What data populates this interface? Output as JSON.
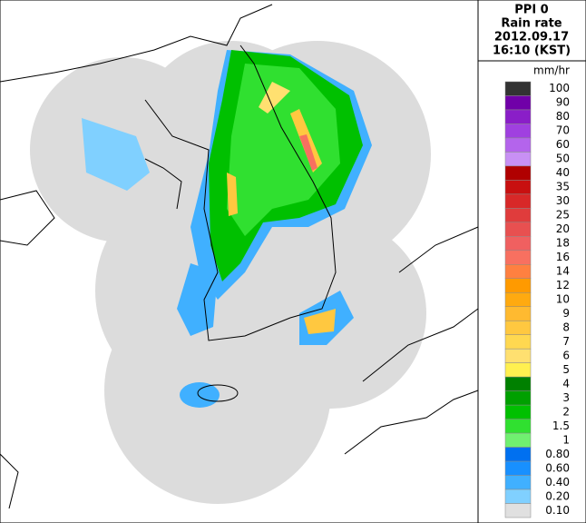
{
  "header": {
    "lines": [
      "PPI 0",
      "Rain rate",
      "2012.09.17",
      "16:10 (KST)"
    ]
  },
  "legend": {
    "unit": "mm/hr",
    "items": [
      {
        "label": "100",
        "color": "#333333"
      },
      {
        "label": "90",
        "color": "#7000a8"
      },
      {
        "label": "80",
        "color": "#8a1ec8"
      },
      {
        "label": "70",
        "color": "#a040e0"
      },
      {
        "label": "60",
        "color": "#b464ec"
      },
      {
        "label": "50",
        "color": "#c890f4"
      },
      {
        "label": "40",
        "color": "#b00000"
      },
      {
        "label": "35",
        "color": "#c81010"
      },
      {
        "label": "30",
        "color": "#d82828"
      },
      {
        "label": "25",
        "color": "#e03c3c"
      },
      {
        "label": "20",
        "color": "#e85050"
      },
      {
        "label": "18",
        "color": "#f06060"
      },
      {
        "label": "16",
        "color": "#f87060"
      },
      {
        "label": "14",
        "color": "#ff8040"
      },
      {
        "label": "12",
        "color": "#ff9a00"
      },
      {
        "label": "10",
        "color": "#ffaa10"
      },
      {
        "label": "9",
        "color": "#ffba30"
      },
      {
        "label": "8",
        "color": "#ffc840"
      },
      {
        "label": "7",
        "color": "#ffd850"
      },
      {
        "label": "6",
        "color": "#ffe070"
      },
      {
        "label": "5",
        "color": "#fff050"
      },
      {
        "label": "4",
        "color": "#008000"
      },
      {
        "label": "3",
        "color": "#00a000"
      },
      {
        "label": "2",
        "color": "#00c000"
      },
      {
        "label": "1.5",
        "color": "#30e030"
      },
      {
        "label": "1",
        "color": "#70f070"
      },
      {
        "label": "0.80",
        "color": "#0070f0"
      },
      {
        "label": "0.60",
        "color": "#1890ff"
      },
      {
        "label": "0.40",
        "color": "#40b0ff"
      },
      {
        "label": "0.20",
        "color": "#80d0ff"
      },
      {
        "label": "0.10",
        "color": "#e0e0e0"
      }
    ]
  }
}
